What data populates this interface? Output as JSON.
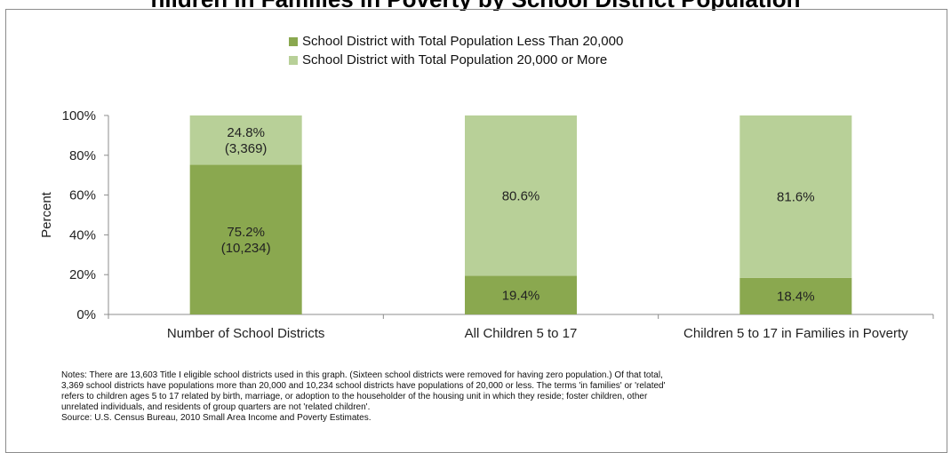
{
  "title": "hildren in Families in Poverty by School District Population",
  "chart_data": {
    "type": "bar",
    "stacked": true,
    "percent": true,
    "categories": [
      "Number of School Districts",
      "All Children 5 to 17",
      "Children 5 to 17 in Families in Poverty"
    ],
    "series": [
      {
        "name": "School District with Total Population Less Than 20,000",
        "color": "#8aa84f",
        "values": [
          75.2,
          19.4,
          18.4
        ],
        "labels": [
          [
            "75.2%",
            "(10,234)"
          ],
          [
            "19.4%"
          ],
          [
            "18.4%"
          ]
        ]
      },
      {
        "name": "School District with Total Population 20,000 or More",
        "color": "#b8d098",
        "values": [
          24.8,
          80.6,
          81.6
        ],
        "labels": [
          [
            "24.8%",
            "(3,369)"
          ],
          [
            "80.6%"
          ],
          [
            "81.6%"
          ]
        ]
      }
    ],
    "ylabel": "Percent",
    "xlabel": "",
    "ylim": [
      0,
      100
    ],
    "yticks": [
      "0%",
      "20%",
      "40%",
      "60%",
      "80%",
      "100%"
    ],
    "grid": false,
    "legend_position": "top"
  },
  "notes": [
    "Notes:  There are 13,603 Title I eligible school districts used in this graph.  (Sixteen school districts were removed for having zero population.)  Of that total,",
    "3,369 school districts have populations more than 20,000 and 10,234 school districts have populations of 20,000 or less.  The terms 'in families' or 'related'",
    "refers to children ages 5 to 17 related by birth, marriage, or adoption to the householder of the housing unit in which they reside; foster children, other",
    "unrelated individuals, and residents of group quarters are not 'related children'.",
    "Source:  U.S. Census Bureau, 2010 Small Area Income and Poverty Estimates."
  ]
}
